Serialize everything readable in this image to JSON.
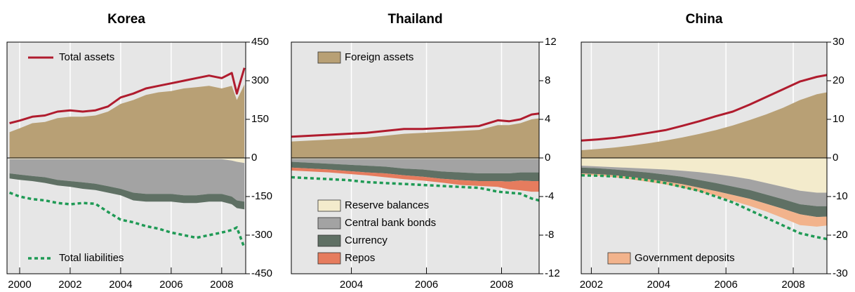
{
  "chart_data": [
    {
      "type": "area",
      "title": "Korea",
      "x": [
        1999.6,
        2000,
        2000.5,
        2001,
        2001.5,
        2002,
        2002.5,
        2003,
        2003.5,
        2004,
        2004.5,
        2005,
        2005.5,
        2006,
        2006.5,
        2007,
        2007.5,
        2008,
        2008.4,
        2008.6,
        2008.9
      ],
      "xlim": [
        1999.5,
        2008.95
      ],
      "xticks": [
        2000,
        2002,
        2004,
        2006,
        2008
      ],
      "ylim": [
        -450,
        450
      ],
      "yticks": [
        -450,
        -300,
        -150,
        0,
        150,
        300,
        450
      ],
      "grid": true,
      "series": [
        {
          "kind": "area",
          "color": "#b8a075",
          "values": [
            100,
            115,
            135,
            140,
            155,
            160,
            160,
            165,
            180,
            210,
            225,
            245,
            255,
            260,
            270,
            275,
            280,
            270,
            280,
            225,
            285
          ]
        },
        {
          "kind": "area",
          "color": "#f3ebcc",
          "values": [
            -5,
            -5,
            -5,
            -5,
            -5,
            -5,
            -5,
            -5,
            -5,
            -5,
            -5,
            -5,
            -5,
            -5,
            -5,
            -5,
            -5,
            -5,
            -10,
            -15,
            -20
          ]
        },
        {
          "kind": "area",
          "color": "#a3a3a3",
          "values": [
            -55,
            -60,
            -65,
            -70,
            -80,
            -85,
            -90,
            -95,
            -105,
            -115,
            -130,
            -135,
            -135,
            -135,
            -140,
            -140,
            -135,
            -135,
            -140,
            -150,
            -150
          ]
        },
        {
          "kind": "area",
          "color": "#5f7064",
          "values": [
            -20,
            -20,
            -20,
            -22,
            -22,
            -22,
            -25,
            -25,
            -25,
            -25,
            -30,
            -30,
            -30,
            -30,
            -30,
            -30,
            -30,
            -30,
            -30,
            -30,
            -30
          ]
        },
        {
          "kind": "line",
          "name": "Total assets",
          "legend": "upper left",
          "color": "#b01c2e",
          "values": [
            135,
            145,
            160,
            165,
            180,
            185,
            180,
            185,
            200,
            235,
            250,
            270,
            280,
            290,
            300,
            310,
            320,
            310,
            330,
            250,
            350
          ]
        },
        {
          "kind": "line",
          "name": "Total liabilities",
          "legend": "lower left",
          "color": "#1f9a55",
          "dashed": true,
          "values": [
            -135,
            -150,
            -160,
            -165,
            -175,
            -180,
            -175,
            -178,
            -210,
            -240,
            -250,
            -265,
            -275,
            -290,
            -300,
            -310,
            -300,
            -290,
            -280,
            -270,
            -350
          ]
        }
      ]
    },
    {
      "type": "area",
      "title": "Thailand",
      "x": [
        2002.4,
        2002.9,
        2003.4,
        2003.9,
        2004.4,
        2004.9,
        2005.4,
        2005.9,
        2006.4,
        2006.9,
        2007.4,
        2007.9,
        2008.2,
        2008.5,
        2008.8,
        2009.0
      ],
      "xlim": [
        2002.4,
        2009.0
      ],
      "xticks": [
        2004,
        2006,
        2008
      ],
      "ylim": [
        -12,
        12
      ],
      "yticks": [
        -12,
        -8,
        -4,
        0,
        4,
        8,
        12
      ],
      "grid": true,
      "series": [
        {
          "kind": "area",
          "name": "Foreign assets",
          "legend": "upper left",
          "color": "#b8a075",
          "values": [
            1.7,
            1.8,
            1.9,
            2.0,
            2.1,
            2.3,
            2.5,
            2.6,
            2.7,
            2.8,
            2.9,
            3.4,
            3.4,
            3.6,
            4.0,
            4.1
          ]
        },
        {
          "kind": "area",
          "name": "Reserve balances",
          "legend": "lower left",
          "color": "#f3ebcc",
          "values": [
            -0.1,
            -0.1,
            -0.1,
            -0.1,
            -0.1,
            -0.1,
            -0.1,
            -0.1,
            -0.1,
            -0.1,
            -0.1,
            -0.1,
            -0.1,
            -0.1,
            -0.1,
            -0.1
          ]
        },
        {
          "kind": "area",
          "name": "Central bank bonds",
          "legend": "lower left",
          "color": "#a3a3a3",
          "values": [
            -0.3,
            -0.4,
            -0.5,
            -0.6,
            -0.7,
            -0.8,
            -1.0,
            -1.1,
            -1.3,
            -1.4,
            -1.5,
            -1.5,
            -1.5,
            -1.4,
            -1.4,
            -1.4
          ]
        },
        {
          "kind": "area",
          "name": "Currency",
          "legend": "lower left",
          "color": "#5f7064",
          "values": [
            -0.6,
            -0.6,
            -0.6,
            -0.65,
            -0.7,
            -0.7,
            -0.7,
            -0.75,
            -0.75,
            -0.8,
            -0.8,
            -0.8,
            -0.85,
            -0.85,
            -0.9,
            -0.9
          ]
        },
        {
          "kind": "area",
          "name": "Repos",
          "legend": "lower left",
          "color": "#e67c5e",
          "values": [
            -0.3,
            -0.3,
            -0.3,
            -0.3,
            -0.3,
            -0.4,
            -0.4,
            -0.4,
            -0.4,
            -0.5,
            -0.5,
            -0.6,
            -0.8,
            -1.0,
            -1.1,
            -1.1
          ]
        },
        {
          "kind": "line",
          "color": "#b01c2e",
          "values": [
            2.2,
            2.3,
            2.4,
            2.5,
            2.6,
            2.8,
            3.0,
            3.0,
            3.1,
            3.2,
            3.3,
            3.9,
            3.8,
            4.0,
            4.5,
            4.6
          ]
        },
        {
          "kind": "line",
          "color": "#1f9a55",
          "dashed": true,
          "values": [
            -2.0,
            -2.1,
            -2.2,
            -2.3,
            -2.5,
            -2.6,
            -2.7,
            -2.8,
            -2.9,
            -3.0,
            -3.1,
            -3.5,
            -3.6,
            -3.7,
            -4.2,
            -4.4
          ]
        }
      ]
    },
    {
      "type": "area",
      "title": "China",
      "x": [
        2001.7,
        2002.2,
        2002.7,
        2003.2,
        2003.7,
        2004.2,
        2004.7,
        2005.2,
        2005.7,
        2006.2,
        2006.7,
        2007.2,
        2007.7,
        2008.2,
        2008.7,
        2009.0
      ],
      "xlim": [
        2001.7,
        2009.0
      ],
      "xticks": [
        2002,
        2004,
        2006,
        2008
      ],
      "ylim": [
        -30,
        30
      ],
      "yticks": [
        -30,
        -20,
        -10,
        0,
        10,
        20,
        30
      ],
      "grid": true,
      "series": [
        {
          "kind": "area",
          "color": "#b8a075",
          "values": [
            2.0,
            2.3,
            2.7,
            3.2,
            3.8,
            4.5,
            5.3,
            6.2,
            7.2,
            8.4,
            9.8,
            11.3,
            13.0,
            15.0,
            16.5,
            17.0
          ]
        },
        {
          "kind": "area",
          "color": "#f3ebcc",
          "values": [
            -2.0,
            -2.2,
            -2.4,
            -2.6,
            -2.8,
            -3.0,
            -3.3,
            -3.7,
            -4.2,
            -4.8,
            -5.5,
            -6.5,
            -7.5,
            -8.5,
            -9.0,
            -9.0
          ]
        },
        {
          "kind": "area",
          "color": "#a3a3a3",
          "values": [
            -0.5,
            -0.5,
            -0.6,
            -0.8,
            -1.0,
            -1.3,
            -1.6,
            -2.0,
            -2.3,
            -2.6,
            -2.8,
            -3.0,
            -3.2,
            -3.5,
            -3.5,
            -3.5
          ]
        },
        {
          "kind": "area",
          "color": "#5f7064",
          "values": [
            -1.5,
            -1.5,
            -1.5,
            -1.6,
            -1.7,
            -1.8,
            -1.9,
            -2.0,
            -2.1,
            -2.2,
            -2.3,
            -2.4,
            -2.5,
            -2.6,
            -2.8,
            -2.7
          ]
        },
        {
          "kind": "area",
          "name": "Government deposits",
          "legend": "lower left",
          "color": "#f2b38c",
          "values": [
            -0.3,
            -0.4,
            -0.5,
            -0.6,
            -0.7,
            -0.8,
            -0.9,
            -1.0,
            -1.2,
            -1.5,
            -1.8,
            -2.0,
            -2.4,
            -2.8,
            -2.5,
            -2.3
          ]
        },
        {
          "kind": "line",
          "color": "#b01c2e",
          "values": [
            4.5,
            4.8,
            5.2,
            5.8,
            6.5,
            7.2,
            8.3,
            9.5,
            10.8,
            12.0,
            13.8,
            15.8,
            17.8,
            19.8,
            21.0,
            21.5
          ]
        },
        {
          "kind": "line",
          "color": "#1f9a55",
          "dashed": true,
          "values": [
            -4.5,
            -4.6,
            -4.8,
            -5.2,
            -5.8,
            -6.5,
            -7.5,
            -8.5,
            -10,
            -11.5,
            -13.5,
            -15.5,
            -17.5,
            -19.5,
            -20.5,
            -21.0
          ]
        }
      ]
    }
  ]
}
